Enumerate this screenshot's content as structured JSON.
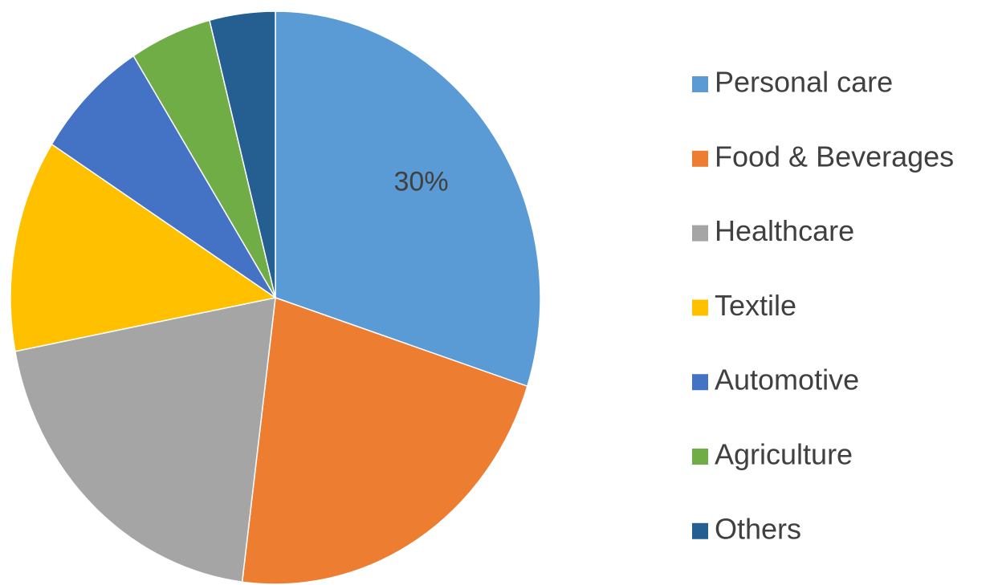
{
  "chart_data": {
    "type": "pie",
    "categories": [
      "Personal care",
      "Food & Beverages",
      "Healthcare",
      "Textile",
      "Automotive",
      "Agriculture",
      "Others"
    ],
    "values": [
      30,
      22,
      20,
      12,
      7,
      5,
      4
    ],
    "value_labels": [
      "30%",
      null,
      null,
      null,
      null,
      null,
      null
    ],
    "colors": [
      "#5b9bd5",
      "#ed7d31",
      "#a5a5a5",
      "#ffc000",
      "#4472c4",
      "#70ad47",
      "#255e91"
    ],
    "legend": "right"
  }
}
